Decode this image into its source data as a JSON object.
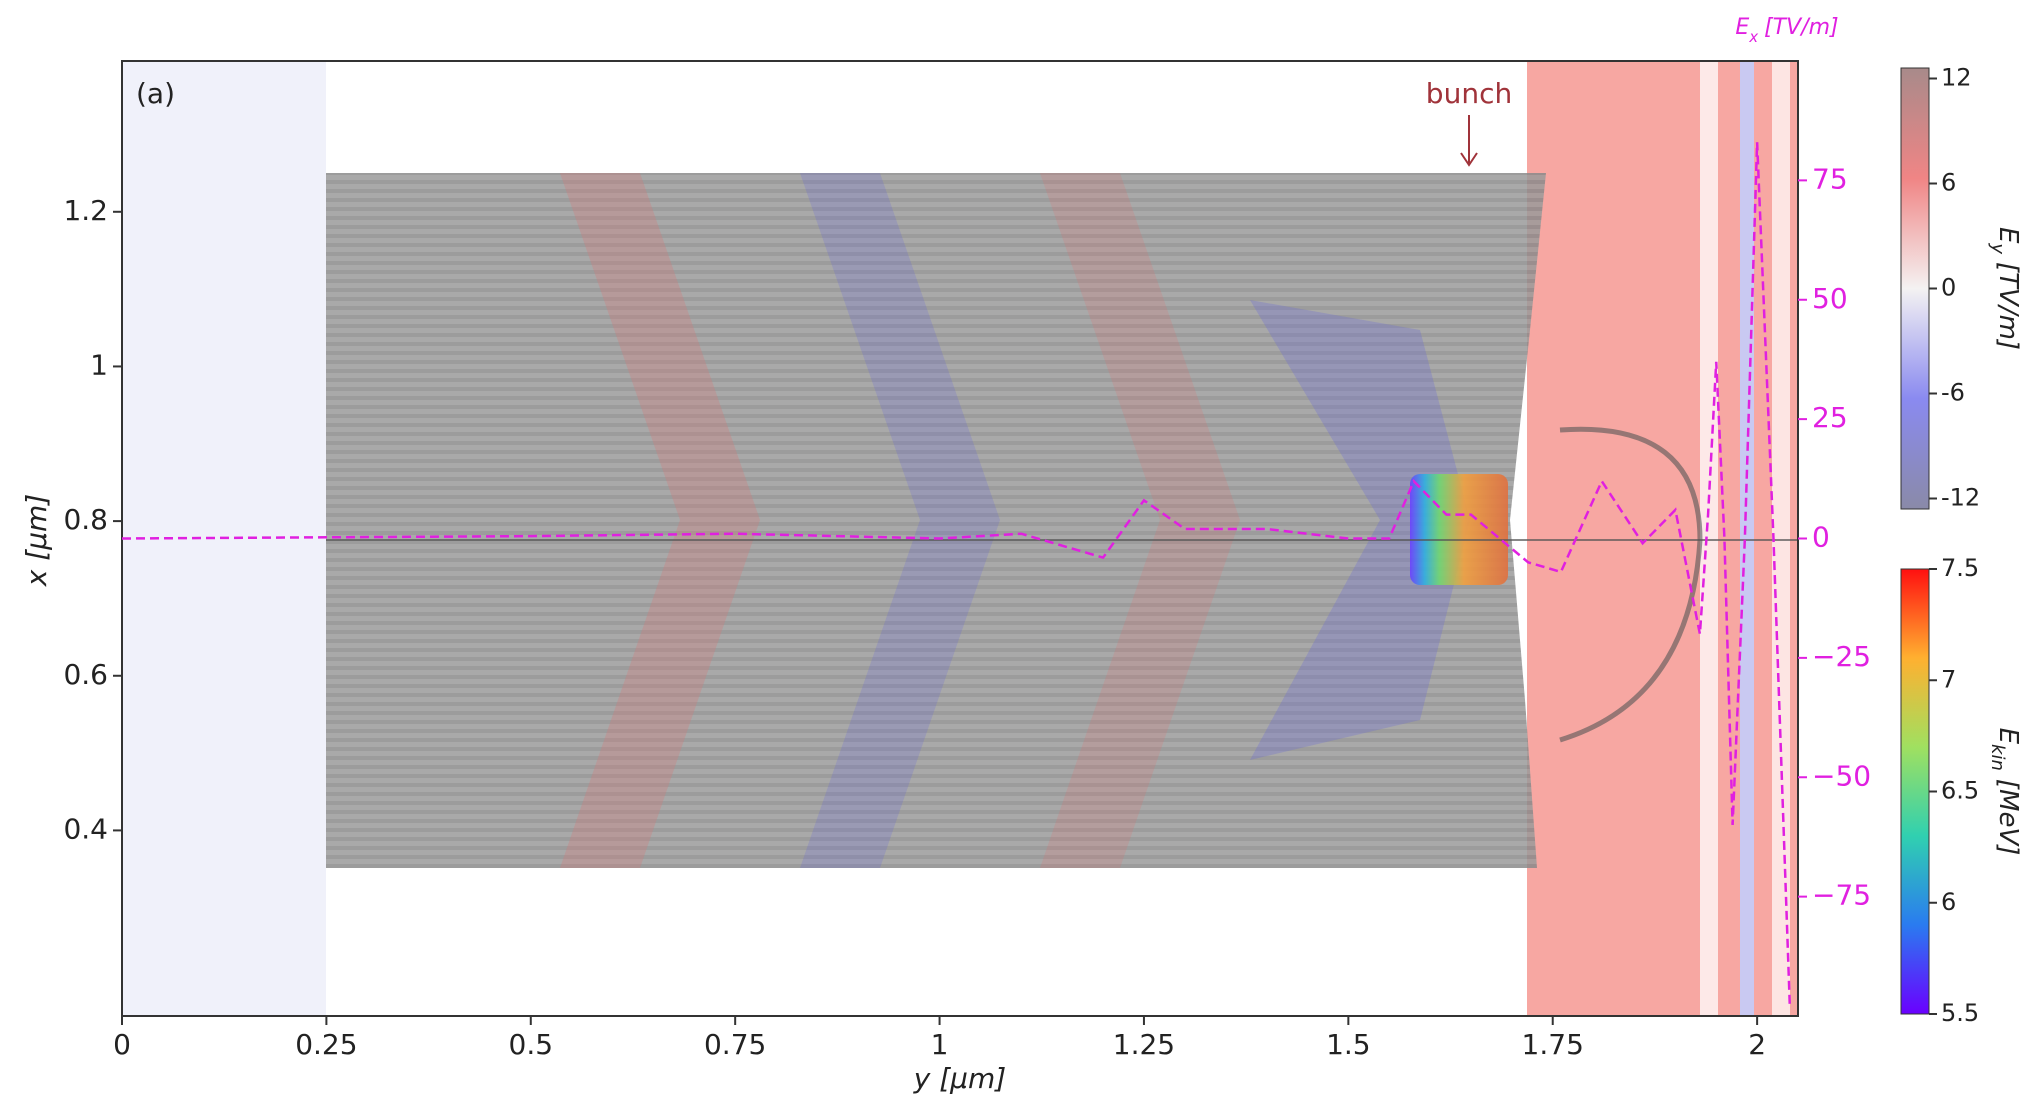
{
  "chart_data": {
    "type": "line",
    "panel_label": "(a)",
    "annotation": "bunch",
    "x_label": "y [μm]",
    "y_label": "x [μm]",
    "y2_label": {
      "symbol": "E",
      "subscript": "x",
      "unit": "[TV/m]"
    },
    "xlim": [
      0,
      2.05
    ],
    "xticks": [
      0,
      0.25,
      0.5,
      0.75,
      1,
      1.25,
      1.5,
      1.75,
      2
    ],
    "ylim": [
      0.16,
      1.395
    ],
    "yticks": [
      0.4,
      0.6,
      0.8,
      1,
      1.2
    ],
    "y2lim": [
      -100,
      100
    ],
    "y2ticks": [
      {
        "value": -75,
        "label": "−75"
      },
      {
        "value": -50,
        "label": "−50"
      },
      {
        "value": -25,
        "label": "−25"
      },
      0,
      25,
      50,
      75
    ],
    "series": [
      {
        "axis": "y2",
        "color": "#e020e0",
        "dashed": true,
        "x": [
          0,
          0.5,
          0.75,
          1.0,
          1.1,
          1.2,
          1.25,
          1.3,
          1.4,
          1.5,
          1.55,
          1.58,
          1.62,
          1.65,
          1.72,
          1.76,
          1.81,
          1.86,
          1.9,
          1.93,
          1.94,
          1.95,
          1.96,
          1.97,
          1.985,
          2.0,
          2.02,
          2.04
        ],
        "values": [
          0,
          0.5,
          1,
          0,
          1,
          -4,
          8,
          2,
          2,
          0,
          0,
          12,
          5,
          5,
          -5,
          -7,
          12,
          -1,
          6,
          -20,
          5,
          37,
          0,
          -60,
          0,
          83,
          0,
          -98
        ]
      }
    ],
    "colorbars": [
      {
        "label": {
          "symbol": "E",
          "subscript": "y",
          "unit": "[TV/m]"
        },
        "lim": [
          -12.6,
          12.6
        ],
        "ticks": [
          -12,
          -6,
          0,
          6,
          12
        ]
      },
      {
        "label": {
          "symbol": "E",
          "subscript": "kin",
          "unit": "[MeV]"
        },
        "lim": [
          5.5,
          7.5
        ],
        "ticks": [
          5.5,
          6,
          6.5,
          7,
          7.5
        ]
      }
    ]
  }
}
